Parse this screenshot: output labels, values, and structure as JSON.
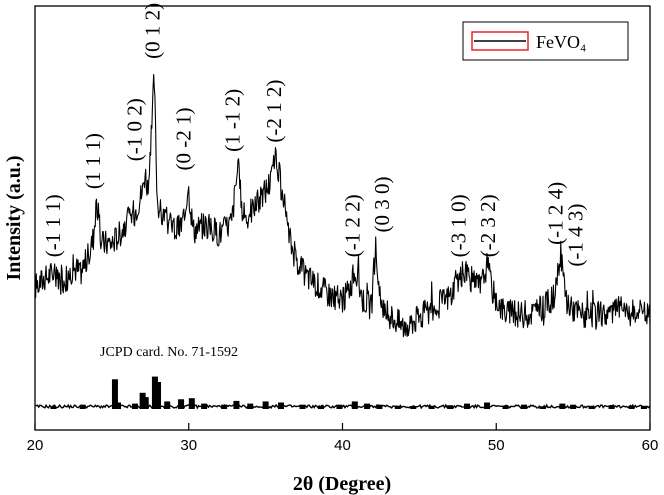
{
  "chart_data": {
    "type": "line",
    "xlabel": "2θ (Degree)",
    "ylabel": "Intensity (a.u.)",
    "xlim": [
      20,
      60
    ],
    "xticks": [
      "20",
      "30",
      "40",
      "50",
      "60"
    ],
    "legend": {
      "position": "top-right",
      "entries": [
        {
          "name": "FeVO₄",
          "color": "#e8262a"
        }
      ]
    },
    "series": [
      {
        "name": "FeVO₄",
        "x": [
          20,
          21,
          22,
          22.5,
          23,
          23.5,
          23.8,
          24.0,
          24.3,
          25,
          25.5,
          26,
          26.5,
          27.0,
          27.15,
          27.4,
          27.6,
          27.75,
          27.95,
          28.2,
          28.6,
          29.2,
          29.7,
          29.95,
          30.3,
          31,
          32,
          32.8,
          33.2,
          33.5,
          34,
          34.5,
          35,
          35.4,
          35.7,
          35.85,
          36.2,
          36.8,
          37.5,
          38,
          39,
          40,
          40.5,
          40.85,
          41.3,
          41.9,
          42.15,
          42.5,
          43,
          44,
          45,
          46,
          47,
          47.5,
          48.1,
          48.5,
          49,
          49.4,
          49.8,
          50.5,
          51,
          52,
          53,
          53.8,
          54.2,
          54.6,
          55.2,
          56,
          57,
          58,
          59,
          60
        ],
        "y": [
          0.19,
          0.23,
          0.21,
          0.25,
          0.24,
          0.29,
          0.35,
          0.47,
          0.33,
          0.33,
          0.36,
          0.4,
          0.43,
          0.5,
          0.56,
          0.49,
          0.71,
          0.87,
          0.47,
          0.42,
          0.4,
          0.37,
          0.4,
          0.52,
          0.37,
          0.39,
          0.36,
          0.4,
          0.58,
          0.41,
          0.43,
          0.46,
          0.5,
          0.54,
          0.61,
          0.56,
          0.42,
          0.3,
          0.23,
          0.21,
          0.17,
          0.14,
          0.19,
          0.24,
          0.15,
          0.12,
          0.32,
          0.11,
          0.1,
          0.06,
          0.09,
          0.12,
          0.16,
          0.21,
          0.24,
          0.2,
          0.19,
          0.26,
          0.17,
          0.11,
          0.1,
          0.1,
          0.12,
          0.16,
          0.28,
          0.14,
          0.11,
          0.09,
          0.1,
          0.12,
          0.1,
          0.1
        ]
      }
    ],
    "peak_labels": [
      {
        "text": "(-1 1 1)",
        "x": 21.3,
        "y": 0.27
      },
      {
        "text": "(1 1 1)",
        "x": 23.9,
        "y": 0.49
      },
      {
        "text": "(-1 0 2)",
        "x": 26.6,
        "y": 0.58
      },
      {
        "text": "(0 1 2)",
        "x": 27.8,
        "y": 0.91
      },
      {
        "text": "(0 -2 1)",
        "x": 29.8,
        "y": 0.55
      },
      {
        "text": "(1 -1 2)",
        "x": 33.0,
        "y": 0.61
      },
      {
        "text": "(-2 1 2)",
        "x": 35.7,
        "y": 0.64
      },
      {
        "text": "(-1 2 2)",
        "x": 40.8,
        "y": 0.27
      },
      {
        "text": "(0 3 0)",
        "x": 42.7,
        "y": 0.35
      },
      {
        "text": "(-3 1 0)",
        "x": 47.7,
        "y": 0.27
      },
      {
        "text": "(-2 3 2)",
        "x": 49.6,
        "y": 0.27
      },
      {
        "text": "(-1 2 4)",
        "x": 54.0,
        "y": 0.31
      },
      {
        "text": "(-1 4 3)",
        "x": 55.3,
        "y": 0.24
      }
    ],
    "reference": {
      "label": "JCPD card. No. 71-1592",
      "x": [
        21.2,
        23.1,
        25.2,
        25.4,
        26.5,
        27.0,
        27.2,
        27.8,
        28.0,
        28.6,
        29.5,
        30.2,
        31.0,
        32.3,
        33.1,
        34.0,
        35.0,
        36.0,
        37.4,
        38.6,
        39.8,
        40.8,
        41.6,
        42.4,
        43.6,
        44.6,
        45.8,
        47.0,
        48.1,
        49.4,
        50.6,
        51.8,
        53.0,
        54.3,
        55.0,
        56.2,
        57.5,
        58.8,
        59.6
      ],
      "y": [
        0.05,
        0.08,
        0.55,
        0.12,
        0.1,
        0.3,
        0.22,
        0.6,
        0.5,
        0.14,
        0.18,
        0.2,
        0.1,
        0.08,
        0.15,
        0.1,
        0.14,
        0.12,
        0.08,
        0.06,
        0.08,
        0.14,
        0.1,
        0.08,
        0.06,
        0.05,
        0.06,
        0.07,
        0.1,
        0.12,
        0.06,
        0.08,
        0.05,
        0.1,
        0.08,
        0.06,
        0.07,
        0.05,
        0.06
      ]
    }
  }
}
